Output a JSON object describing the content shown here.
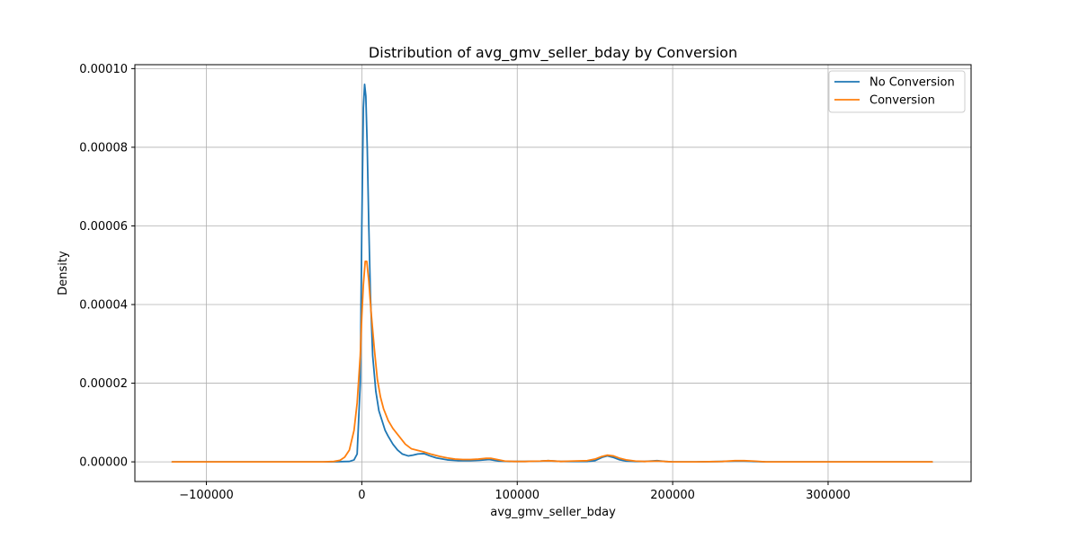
{
  "chart_data": {
    "type": "line",
    "title": "Distribution of avg_gmv_seller_bday by Conversion",
    "xlabel": "avg_gmv_seller_bday",
    "ylabel": "Density",
    "xlim": [
      -146000,
      392000
    ],
    "ylim": [
      -5e-06,
      0.000101
    ],
    "xticks": [
      -100000,
      0,
      100000,
      200000,
      300000
    ],
    "xtick_labels": [
      "−100000",
      "0",
      "100000",
      "200000",
      "300000"
    ],
    "yticks": [
      0,
      2e-05,
      4e-05,
      6e-05,
      8e-05,
      0.0001
    ],
    "ytick_labels": [
      "0.00000",
      "0.00002",
      "0.00004",
      "0.00006",
      "0.00008",
      "0.00010"
    ],
    "grid": true,
    "legend_position": "top-right",
    "series": [
      {
        "name": "No Conversion",
        "color": "#1f77b4",
        "x": [
          -122000,
          -20000,
          -8000,
          -5000,
          -3000,
          -1000,
          0,
          1000,
          1800,
          2600,
          3500,
          4500,
          5500,
          7000,
          9000,
          11000,
          13000,
          15000,
          17000,
          20000,
          23000,
          26000,
          30000,
          33000,
          36000,
          40000,
          44000,
          48000,
          55000,
          62000,
          70000,
          76000,
          82000,
          88000,
          95000,
          105000,
          115000,
          120000,
          128000,
          135000,
          145000,
          150000,
          155000,
          158000,
          162000,
          166000,
          170000,
          176000,
          182000,
          190000,
          195000,
          200000,
          215000,
          232000,
          240000,
          246000,
          252000,
          260000,
          280000,
          320000,
          367000
        ],
        "y": [
          0,
          0,
          1e-07,
          5e-07,
          2e-06,
          2e-05,
          6e-05,
          9e-05,
          9.6e-05,
          9.3e-05,
          8e-05,
          6e-05,
          4.3e-05,
          2.7e-05,
          1.8e-05,
          1.3e-05,
          1.05e-05,
          8e-06,
          6.5e-06,
          4.5e-06,
          3e-06,
          2e-06,
          1.5e-06,
          1.7e-06,
          2e-06,
          2.1e-06,
          1.5e-06,
          1e-06,
          5e-07,
          3e-07,
          3e-07,
          4e-07,
          6e-07,
          2e-07,
          1e-07,
          1e-07,
          2e-07,
          3e-07,
          1e-07,
          1e-07,
          1e-07,
          3e-07,
          1.2e-06,
          1.5e-06,
          1.1e-06,
          5e-07,
          2e-07,
          1e-07,
          1e-07,
          3e-07,
          1e-07,
          0,
          0,
          1e-07,
          2e-07,
          2e-07,
          1e-07,
          0,
          0,
          0,
          0
        ]
      },
      {
        "name": "Conversion",
        "color": "#ff7f0e",
        "x": [
          -122000,
          -25000,
          -18000,
          -14000,
          -11000,
          -8000,
          -5000,
          -3000,
          -1000,
          0,
          1000,
          2200,
          3200,
          4500,
          6000,
          8000,
          10000,
          12000,
          14000,
          17000,
          20000,
          24000,
          28000,
          32000,
          36000,
          40000,
          45000,
          50000,
          55000,
          60000,
          65000,
          70000,
          75000,
          80000,
          83000,
          87000,
          92000,
          98000,
          105000,
          115000,
          120000,
          128000,
          135000,
          145000,
          150000,
          154000,
          158000,
          162000,
          166000,
          170000,
          176000,
          182000,
          190000,
          195000,
          200000,
          215000,
          232000,
          240000,
          246000,
          252000,
          260000,
          280000,
          320000,
          367000
        ],
        "y": [
          0,
          0,
          1e-07,
          4e-07,
          1.2e-06,
          3e-06,
          8e-06,
          1.5e-05,
          2.7e-05,
          3.7e-05,
          4.5e-05,
          5.1e-05,
          5.1e-05,
          4.6e-05,
          3.8e-05,
          2.9e-05,
          2.1e-05,
          1.65e-05,
          1.35e-05,
          1.05e-05,
          8.5e-06,
          6.5e-06,
          4.5e-06,
          3.3e-06,
          2.9e-06,
          2.5e-06,
          1.9e-06,
          1.4e-06,
          1e-06,
          7e-07,
          6e-07,
          6e-07,
          7e-07,
          9e-07,
          9e-07,
          6e-07,
          2e-07,
          1e-07,
          1e-07,
          2e-07,
          3e-07,
          1e-07,
          2e-07,
          3e-07,
          7e-07,
          1.3e-06,
          1.7e-06,
          1.5e-06,
          9e-07,
          5e-07,
          2e-07,
          1e-07,
          2e-07,
          1e-07,
          0,
          0,
          1e-07,
          3e-07,
          3e-07,
          2e-07,
          0,
          0,
          0,
          0
        ]
      }
    ]
  }
}
